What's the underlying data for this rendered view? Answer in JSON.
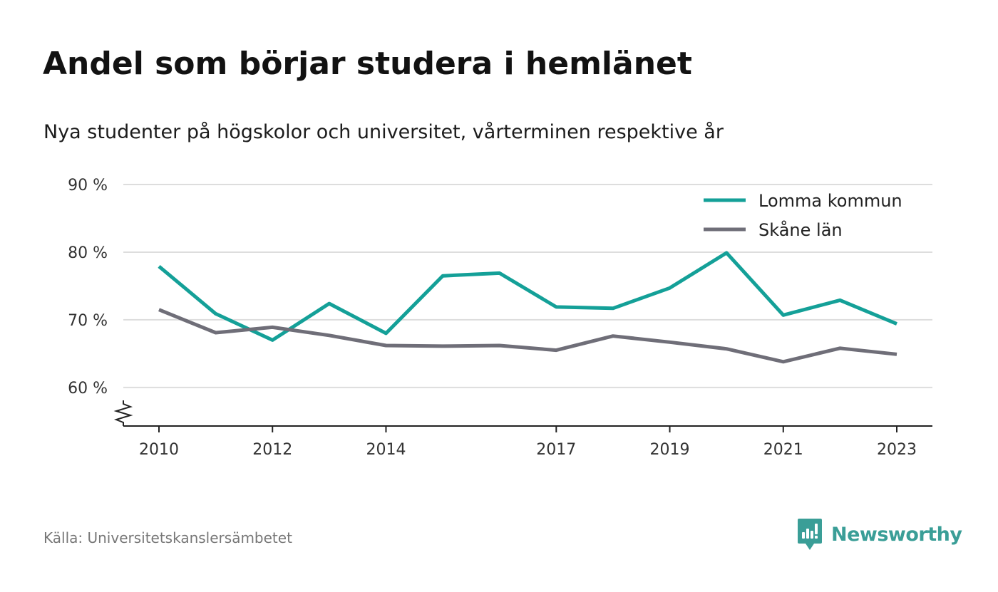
{
  "title": "Andel som börjar studera i hemlänet",
  "subtitle": "Nya studenter på högskolor och universitet, vårterminen respektive år",
  "source": "Källa: Universitetskanslersämbetet",
  "brand": {
    "name": "Newsworthy",
    "icon": "newsworthy-logo-icon",
    "color": "#3a9e97"
  },
  "colors": {
    "grid": "#dddddd",
    "axis": "#222222"
  },
  "chart_data": {
    "type": "line",
    "x": [
      2010,
      2011,
      2012,
      2013,
      2014,
      2015,
      2016,
      2017,
      2018,
      2019,
      2020,
      2021,
      2022,
      2023
    ],
    "x_ticks": [
      "2010",
      "2012",
      "2014",
      "2017",
      "2019",
      "2021",
      "2023"
    ],
    "y_ticks": [
      "90 %",
      "80 %",
      "70 %",
      "60 %"
    ],
    "ylim": [
      54.3,
      90
    ],
    "y_axis_break": true,
    "grid": true,
    "legend_position": "top-right",
    "series": [
      {
        "name": "Lomma kommun",
        "color": "#14a098",
        "values": [
          77.9,
          70.9,
          67.0,
          72.4,
          68.0,
          76.5,
          76.9,
          71.9,
          71.7,
          74.7,
          79.9,
          70.7,
          72.9,
          69.4
        ]
      },
      {
        "name": "Skåne län",
        "color": "#6f6e78",
        "values": [
          71.5,
          68.1,
          68.9,
          67.7,
          66.2,
          66.1,
          66.2,
          65.5,
          67.6,
          66.7,
          65.7,
          63.8,
          65.8,
          64.9
        ]
      }
    ]
  }
}
